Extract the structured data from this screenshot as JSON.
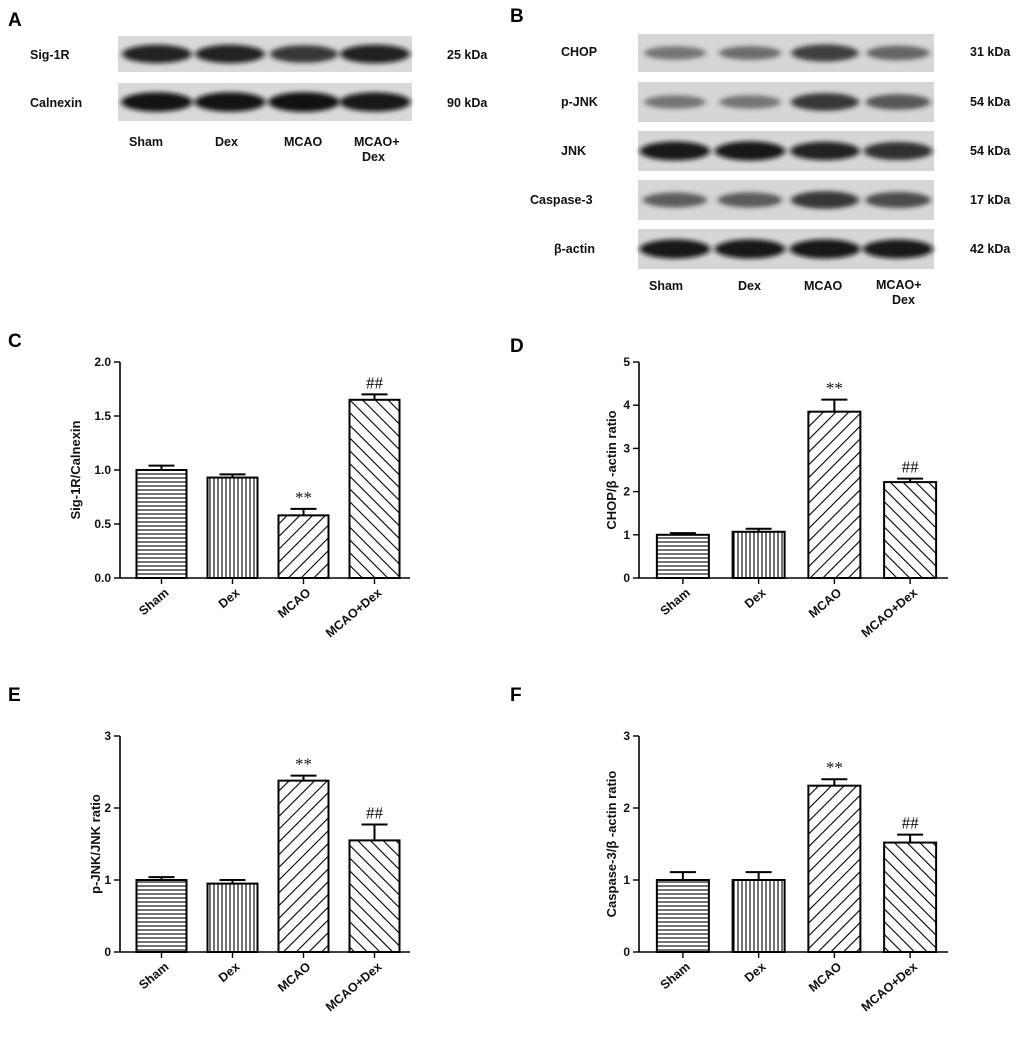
{
  "panels": {
    "A": "A",
    "B": "B",
    "C": "C",
    "D": "D",
    "E": "E",
    "F": "F"
  },
  "blot_A": {
    "rows": [
      {
        "label": "Sig-1R",
        "kda": "25 kDa",
        "intensity": [
          0.85,
          0.85,
          0.75,
          0.86
        ]
      },
      {
        "label": "Calnexin",
        "kda": "90 kDa",
        "intensity": [
          0.95,
          0.95,
          0.97,
          0.93
        ]
      }
    ],
    "lanes": [
      "Sham",
      "Dex",
      "MCAO",
      "MCAO+ Dex"
    ]
  },
  "blot_B": {
    "rows": [
      {
        "label": "CHOP",
        "kda": "31 kDa",
        "intensity": [
          0.35,
          0.38,
          0.7,
          0.45
        ]
      },
      {
        "label": "p-JNK",
        "kda": "54 kDa",
        "intensity": [
          0.35,
          0.35,
          0.75,
          0.55
        ]
      },
      {
        "label": "JNK",
        "kda": "54 kDa",
        "intensity": [
          0.9,
          0.92,
          0.85,
          0.8
        ]
      },
      {
        "label": "Caspase-3",
        "kda": "17 kDa",
        "intensity": [
          0.5,
          0.52,
          0.75,
          0.6
        ]
      },
      {
        "label": "β-actin",
        "kda": "42 kDa",
        "intensity": [
          0.92,
          0.92,
          0.92,
          0.9
        ]
      }
    ],
    "lanes": [
      "Sham",
      "Dex",
      "MCAO",
      "MCAO+ Dex"
    ]
  },
  "chart_data": [
    {
      "type": "bar",
      "panel": "C",
      "categories": [
        "Sham",
        "Dex",
        "MCAO",
        "MCAO+Dex"
      ],
      "values": [
        1.0,
        0.93,
        0.58,
        1.65
      ],
      "errors": [
        0.04,
        0.03,
        0.06,
        0.05
      ],
      "annotations": [
        "",
        "",
        "**",
        "##"
      ],
      "patterns": [
        "hlines",
        "vlines",
        "diag-right",
        "diag-left"
      ],
      "ylabel": "Sig-1R/Calnexin",
      "ylim": [
        0,
        2.0
      ],
      "yticks": [
        "0.0",
        "0.5",
        "1.0",
        "1.5",
        "2.0"
      ]
    },
    {
      "type": "bar",
      "panel": "D",
      "categories": [
        "Sham",
        "Dex",
        "MCAO",
        "MCAO+Dex"
      ],
      "values": [
        1.0,
        1.07,
        3.85,
        2.22
      ],
      "errors": [
        0.04,
        0.07,
        0.28,
        0.08
      ],
      "annotations": [
        "",
        "",
        "**",
        "##"
      ],
      "patterns": [
        "hlines",
        "vlines",
        "diag-right",
        "diag-left"
      ],
      "ylabel": "CHOP/β -actin ratio",
      "ylim": [
        0,
        5
      ],
      "yticks": [
        "0",
        "1",
        "2",
        "3",
        "4",
        "5"
      ]
    },
    {
      "type": "bar",
      "panel": "E",
      "categories": [
        "Sham",
        "Dex",
        "MCAO",
        "MCAO+Dex"
      ],
      "values": [
        1.0,
        0.95,
        2.38,
        1.55
      ],
      "errors": [
        0.04,
        0.05,
        0.07,
        0.22
      ],
      "annotations": [
        "",
        "",
        "**",
        "##"
      ],
      "patterns": [
        "hlines",
        "vlines",
        "diag-right",
        "diag-left"
      ],
      "ylabel": "p-JNK/JNK ratio",
      "ylim": [
        0,
        3
      ],
      "yticks": [
        "0",
        "1",
        "2",
        "3"
      ]
    },
    {
      "type": "bar",
      "panel": "F",
      "categories": [
        "Sham",
        "Dex",
        "MCAO",
        "MCAO+Dex"
      ],
      "values": [
        1.0,
        1.0,
        2.31,
        1.52
      ],
      "errors": [
        0.11,
        0.11,
        0.09,
        0.11
      ],
      "annotations": [
        "",
        "",
        "**",
        "##"
      ],
      "patterns": [
        "hlines",
        "vlines",
        "diag-right",
        "diag-left"
      ],
      "ylabel": "Caspase-3/β -actin ratio",
      "ylim": [
        0,
        3
      ],
      "yticks": [
        "0",
        "1",
        "2",
        "3"
      ]
    }
  ]
}
